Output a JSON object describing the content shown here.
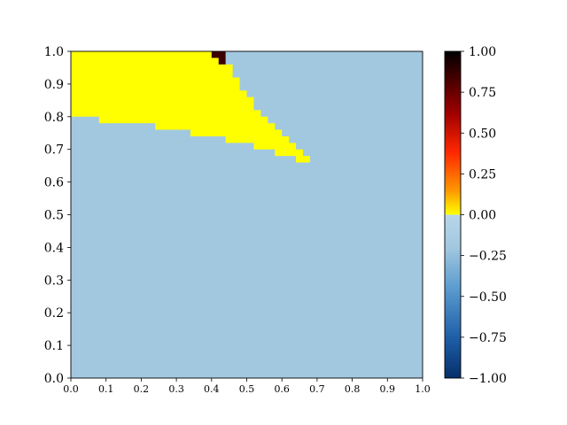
{
  "chart_data": {
    "type": "heatmap",
    "title": "",
    "xlabel": "",
    "ylabel": "",
    "xlim": [
      0,
      1
    ],
    "ylim": [
      0,
      1
    ],
    "x_ticks": [
      "0.0",
      "0.1",
      "0.2",
      "0.3",
      "0.4",
      "0.5",
      "0.6",
      "0.7",
      "0.8",
      "0.9",
      "1.0"
    ],
    "y_ticks": [
      "0.0",
      "0.1",
      "0.2",
      "0.3",
      "0.4",
      "0.5",
      "0.6",
      "0.7",
      "0.8",
      "0.9",
      "1.0"
    ],
    "background_value": -0.2,
    "regions": [
      {
        "value": 0.0,
        "color": "#ffff00",
        "polygon": [
          [
            0.0,
            0.8
          ],
          [
            0.08,
            0.8
          ],
          [
            0.08,
            0.78
          ],
          [
            0.24,
            0.78
          ],
          [
            0.24,
            0.76
          ],
          [
            0.34,
            0.76
          ],
          [
            0.34,
            0.74
          ],
          [
            0.44,
            0.74
          ],
          [
            0.44,
            0.72
          ],
          [
            0.52,
            0.72
          ],
          [
            0.52,
            0.7
          ],
          [
            0.58,
            0.7
          ],
          [
            0.58,
            0.68
          ],
          [
            0.64,
            0.68
          ],
          [
            0.64,
            0.66
          ],
          [
            0.68,
            0.66
          ],
          [
            0.68,
            0.68
          ],
          [
            0.66,
            0.68
          ],
          [
            0.66,
            0.7
          ],
          [
            0.64,
            0.7
          ],
          [
            0.64,
            0.72
          ],
          [
            0.62,
            0.72
          ],
          [
            0.62,
            0.74
          ],
          [
            0.6,
            0.74
          ],
          [
            0.6,
            0.76
          ],
          [
            0.58,
            0.76
          ],
          [
            0.58,
            0.78
          ],
          [
            0.56,
            0.78
          ],
          [
            0.56,
            0.8
          ],
          [
            0.54,
            0.8
          ],
          [
            0.54,
            0.82
          ],
          [
            0.52,
            0.82
          ],
          [
            0.52,
            0.86
          ],
          [
            0.5,
            0.86
          ],
          [
            0.5,
            0.88
          ],
          [
            0.48,
            0.88
          ],
          [
            0.48,
            0.92
          ],
          [
            0.46,
            0.92
          ],
          [
            0.46,
            0.96
          ],
          [
            0.44,
            0.96
          ],
          [
            0.44,
            1.0
          ],
          [
            0.0,
            1.0
          ]
        ]
      },
      {
        "value": 1.0,
        "color": "#3d0000",
        "polygon": [
          [
            0.4,
            0.98
          ],
          [
            0.42,
            0.98
          ],
          [
            0.42,
            0.96
          ],
          [
            0.44,
            0.96
          ],
          [
            0.44,
            1.0
          ],
          [
            0.4,
            1.0
          ]
        ]
      }
    ],
    "colorbar": {
      "range": [
        -1.0,
        1.0
      ],
      "ticks": [
        "1.00",
        "0.75",
        "0.50",
        "0.25",
        "0.00",
        "−0.25",
        "−0.50",
        "−0.75",
        "−1.00"
      ],
      "tick_values": [
        1.0,
        0.75,
        0.5,
        0.25,
        0.0,
        -0.25,
        -0.5,
        -0.75,
        -1.0
      ],
      "upper_stops": [
        {
          "value": 1.0,
          "color": "#000000"
        },
        {
          "value": 0.62,
          "color": "#a00000"
        },
        {
          "value": 0.38,
          "color": "#ff2800"
        },
        {
          "value": 0.15,
          "color": "#ff9600"
        },
        {
          "value": 0.0,
          "color": "#ffff00"
        }
      ],
      "lower_stops": [
        {
          "value": 0.0,
          "color": "#b8d6ea"
        },
        {
          "value": -0.2,
          "color": "#a2c8e0"
        },
        {
          "value": -0.45,
          "color": "#5b9bcf"
        },
        {
          "value": -0.75,
          "color": "#1f5fa8"
        },
        {
          "value": -1.0,
          "color": "#052f6b"
        }
      ]
    }
  }
}
